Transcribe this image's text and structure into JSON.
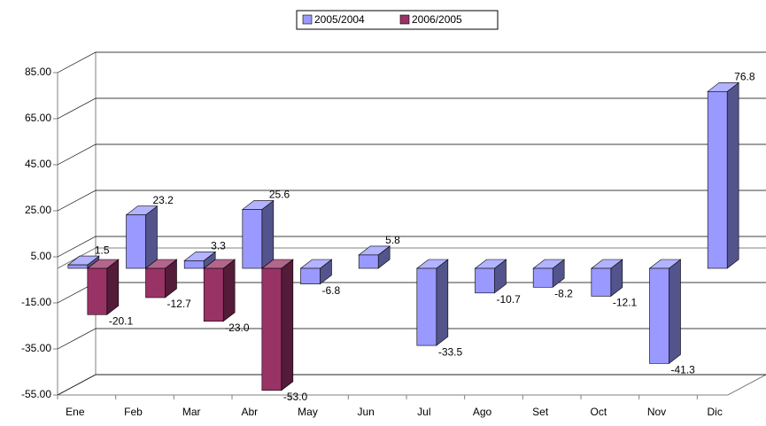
{
  "chart_data": {
    "type": "bar3d",
    "categories": [
      "Ene",
      "Feb",
      "Mar",
      "Abr",
      "May",
      "Jun",
      "Jul",
      "Ago",
      "Set",
      "Oct",
      "Nov",
      "Dic"
    ],
    "series": [
      {
        "name": "2005/2004",
        "color": "#9999ff",
        "values": [
          1.5,
          23.2,
          3.3,
          25.6,
          -6.8,
          5.8,
          -33.5,
          -10.7,
          -8.2,
          -12.1,
          -41.3,
          76.8
        ],
        "value_labels": [
          "1.5",
          "23.2",
          "3.3",
          "25.6",
          "-6.8",
          "5.8",
          "-33.5",
          "-10.7",
          "-8.2",
          "-12.1",
          "-41.3",
          "76.8"
        ]
      },
      {
        "name": "2006/2005",
        "color": "#993366",
        "values": [
          -20.1,
          -12.7,
          -23.0,
          -53.0,
          null,
          null,
          null,
          null,
          null,
          null,
          null,
          null
        ],
        "value_labels": [
          "-20.1",
          "-12.7",
          "-23.0",
          "-53.0",
          null,
          null,
          null,
          null,
          null,
          null,
          null,
          null
        ]
      }
    ],
    "ylim": [
      -55,
      85
    ],
    "yticks": [
      {
        "value": -55,
        "label": "-55.00"
      },
      {
        "value": -35,
        "label": "-35.00"
      },
      {
        "value": -15,
        "label": "-15.00"
      },
      {
        "value": 5,
        "label": "5.00"
      },
      {
        "value": 25,
        "label": "25.00"
      },
      {
        "value": 45,
        "label": "45.00"
      },
      {
        "value": 65,
        "label": "65.00"
      },
      {
        "value": 85,
        "label": "85.00"
      }
    ],
    "grid": true
  }
}
